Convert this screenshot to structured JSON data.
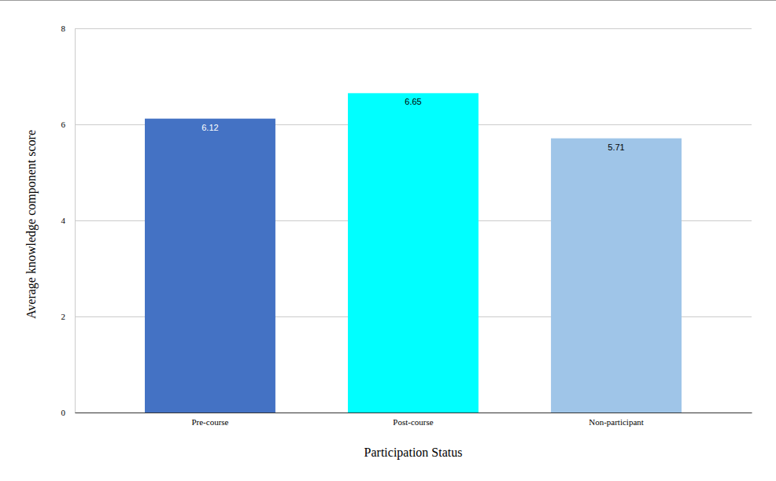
{
  "chart_data": {
    "type": "bar",
    "categories": [
      "Pre-course",
      "Post-course",
      "Non-participant"
    ],
    "values": [
      6.12,
      6.65,
      5.71
    ],
    "colors": [
      "#4472c4",
      "#00ffff",
      "#9fc5e8"
    ],
    "xlabel": "Participation Status",
    "ylabel": "Average knowledge component score",
    "ylim": [
      0,
      8
    ],
    "yticks": [
      0,
      2,
      4,
      6,
      8
    ],
    "grid": true,
    "data_labels": true
  }
}
